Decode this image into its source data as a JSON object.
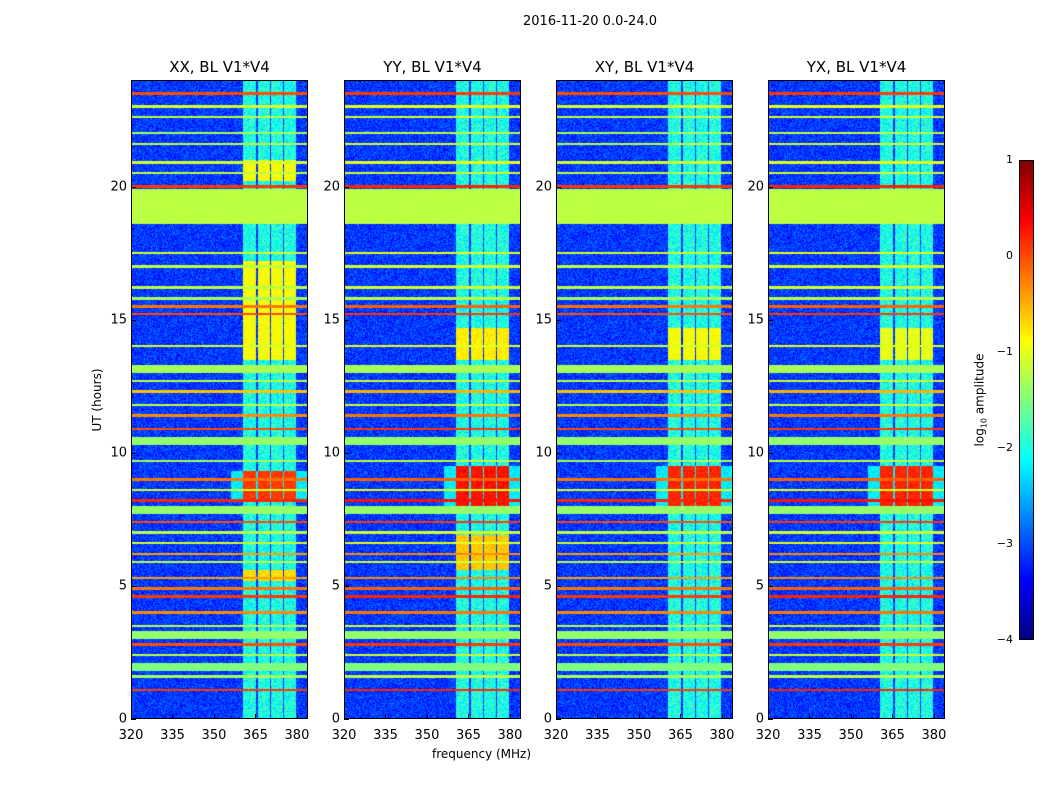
{
  "suptitle": "2016-11-20 0.0-24.0",
  "xlabel": "frequency (MHz)",
  "ylabel": "UT (hours)",
  "colorbar": {
    "label_prefix": "log",
    "label_sub": "10",
    "label_suffix": " amplitude",
    "ticks": [
      "1",
      "0",
      "−1",
      "−2",
      "−3",
      "−4"
    ],
    "tick_values": [
      1,
      0,
      -1,
      -2,
      -3,
      -4
    ],
    "range": [
      -4,
      1
    ],
    "colormap": "jet"
  },
  "chart_data": [
    {
      "type": "heatmap",
      "title": "XX, BL V1*V4",
      "xlim": [
        320,
        384
      ],
      "ylim": [
        0,
        24
      ],
      "xticks": [
        "320",
        "335",
        "350",
        "365",
        "380"
      ],
      "xtick_values": [
        320,
        335,
        350,
        365,
        380
      ],
      "yticks": [
        "0",
        "5",
        "10",
        "15",
        "20"
      ],
      "ytick_values": [
        0,
        5,
        10,
        15,
        20
      ],
      "band_events": [
        {
          "from": 8.2,
          "to": 9.3,
          "level": 0.1
        },
        {
          "from": 13.5,
          "to": 17.2,
          "level": -0.9
        },
        {
          "from": 5.2,
          "to": 5.6,
          "level": -0.7
        },
        {
          "from": 20.2,
          "to": 21.0,
          "level": -0.9
        }
      ]
    },
    {
      "type": "heatmap",
      "title": "YY, BL V1*V4",
      "xlim": [
        320,
        384
      ],
      "ylim": [
        0,
        24
      ],
      "xticks": [
        "320",
        "335",
        "350",
        "365",
        "380"
      ],
      "xtick_values": [
        320,
        335,
        350,
        365,
        380
      ],
      "yticks": [
        "0",
        "5",
        "10",
        "15",
        "20"
      ],
      "ytick_values": [
        0,
        5,
        10,
        15,
        20
      ],
      "band_events": [
        {
          "from": 8.0,
          "to": 9.5,
          "level": 0.3
        },
        {
          "from": 13.5,
          "to": 14.7,
          "level": -0.8
        },
        {
          "from": 5.6,
          "to": 6.9,
          "level": -0.6
        }
      ]
    },
    {
      "type": "heatmap",
      "title": "XY, BL V1*V4",
      "xlim": [
        320,
        384
      ],
      "ylim": [
        0,
        24
      ],
      "xticks": [
        "320",
        "335",
        "350",
        "365",
        "380"
      ],
      "xtick_values": [
        320,
        335,
        350,
        365,
        380
      ],
      "yticks": [
        "0",
        "5",
        "10",
        "15",
        "20"
      ],
      "ytick_values": [
        0,
        5,
        10,
        15,
        20
      ],
      "band_events": [
        {
          "from": 8.0,
          "to": 9.5,
          "level": 0.2
        },
        {
          "from": 13.5,
          "to": 14.7,
          "level": -0.9
        }
      ]
    },
    {
      "type": "heatmap",
      "title": "YX, BL V1*V4",
      "xlim": [
        320,
        384
      ],
      "ylim": [
        0,
        24
      ],
      "xticks": [
        "320",
        "335",
        "350",
        "365",
        "380"
      ],
      "xtick_values": [
        320,
        335,
        350,
        365,
        380
      ],
      "yticks": [
        "0",
        "5",
        "10",
        "15",
        "20"
      ],
      "ytick_values": [
        0,
        5,
        10,
        15,
        20
      ],
      "band_events": [
        {
          "from": 8.0,
          "to": 9.5,
          "level": 0.2
        },
        {
          "from": 13.5,
          "to": 14.7,
          "level": -1.0
        }
      ]
    }
  ],
  "background_level": -3.1,
  "band_level": -2.0,
  "band_channels_mhz": [
    [
      360.5,
      365.2
    ],
    [
      365.8,
      370.2
    ],
    [
      370.8,
      374.8
    ],
    [
      375.4,
      379.8
    ]
  ],
  "flagged_ranges": [
    {
      "from": 18.6,
      "to": 19.9,
      "level": -1.2
    },
    {
      "from": 13.0,
      "to": 13.3,
      "level": -1.3
    },
    {
      "from": 10.3,
      "to": 10.6,
      "level": -1.4
    },
    {
      "from": 7.7,
      "to": 8.0,
      "level": -1.4
    },
    {
      "from": 1.8,
      "to": 2.1,
      "level": -1.5
    },
    {
      "from": 3.0,
      "to": 3.3,
      "level": -1.4
    }
  ],
  "rfi_lines": [
    {
      "ut": 1.1,
      "level": 0.1
    },
    {
      "ut": 1.6,
      "level": -1.3
    },
    {
      "ut": 2.4,
      "level": -1.2
    },
    {
      "ut": 2.8,
      "level": 0.0
    },
    {
      "ut": 3.5,
      "level": -1.2
    },
    {
      "ut": 4.0,
      "level": -0.3
    },
    {
      "ut": 4.6,
      "level": 0.1
    },
    {
      "ut": 4.9,
      "level": -0.2
    },
    {
      "ut": 5.3,
      "level": -0.4
    },
    {
      "ut": 5.9,
      "level": -1.2
    },
    {
      "ut": 6.2,
      "level": -0.4
    },
    {
      "ut": 6.6,
      "level": -1.1
    },
    {
      "ut": 7.0,
      "level": -1.2
    },
    {
      "ut": 7.4,
      "level": 0.0
    },
    {
      "ut": 8.2,
      "level": 0.2
    },
    {
      "ut": 8.6,
      "level": -1.1
    },
    {
      "ut": 9.0,
      "level": -0.2
    },
    {
      "ut": 9.7,
      "level": -1.3
    },
    {
      "ut": 10.9,
      "level": 0.0
    },
    {
      "ut": 11.4,
      "level": -0.3
    },
    {
      "ut": 11.8,
      "level": -1.2
    },
    {
      "ut": 12.3,
      "level": -0.6
    },
    {
      "ut": 12.7,
      "level": -1.2
    },
    {
      "ut": 14.0,
      "level": -1.1
    },
    {
      "ut": 15.2,
      "level": 0.0
    },
    {
      "ut": 15.5,
      "level": -0.2
    },
    {
      "ut": 15.8,
      "level": -1.3
    },
    {
      "ut": 16.2,
      "level": -1.2
    },
    {
      "ut": 17.0,
      "level": -1.2
    },
    {
      "ut": 17.5,
      "level": -1.1
    },
    {
      "ut": 20.0,
      "level": 0.1
    },
    {
      "ut": 20.5,
      "level": -1.2
    },
    {
      "ut": 20.9,
      "level": -1.1
    },
    {
      "ut": 21.6,
      "level": -1.2
    },
    {
      "ut": 22.0,
      "level": -1.3
    },
    {
      "ut": 22.6,
      "level": -1.2
    },
    {
      "ut": 23.0,
      "level": -1.1
    },
    {
      "ut": 23.5,
      "level": 0.0
    }
  ]
}
